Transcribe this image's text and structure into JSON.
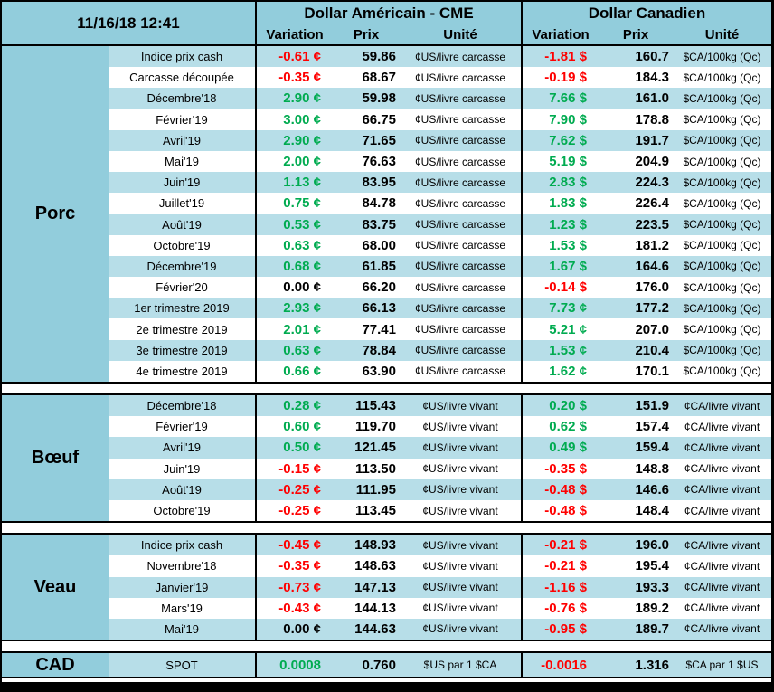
{
  "header": {
    "datetime": "11/16/18 12:41",
    "group_us": "Dollar Américain - CME",
    "group_ca": "Dollar Canadien",
    "col_variation": "Variation",
    "col_prix": "Prix",
    "col_unite": "Unité"
  },
  "colors": {
    "header_teal": "#92CDDC",
    "stripe_blue": "#B7DEE8",
    "negative_red": "#FF0000",
    "positive_green": "#00AB50",
    "border_black": "#000000"
  },
  "sections": [
    {
      "name": "Porc",
      "rows": [
        {
          "label": "Indice prix cash",
          "us_var": "-0.61 ¢",
          "us_price": "59.86",
          "us_unit": "¢US/livre carcasse",
          "ca_var": "-1.81 $",
          "ca_price": "160.7",
          "ca_unit": "$CA/100kg (Qc)"
        },
        {
          "label": "Carcasse découpée",
          "us_var": "-0.35 ¢",
          "us_price": "68.67",
          "us_unit": "¢US/livre carcasse",
          "ca_var": "-0.19 $",
          "ca_price": "184.3",
          "ca_unit": "$CA/100kg (Qc)"
        },
        {
          "label": "Décembre'18",
          "us_var": "2.90 ¢",
          "us_price": "59.98",
          "us_unit": "¢US/livre carcasse",
          "ca_var": "7.66 $",
          "ca_price": "161.0",
          "ca_unit": "$CA/100kg (Qc)"
        },
        {
          "label": "Février'19",
          "us_var": "3.00 ¢",
          "us_price": "66.75",
          "us_unit": "¢US/livre carcasse",
          "ca_var": "7.90 $",
          "ca_price": "178.8",
          "ca_unit": "$CA/100kg (Qc)"
        },
        {
          "label": "Avril'19",
          "us_var": "2.90 ¢",
          "us_price": "71.65",
          "us_unit": "¢US/livre carcasse",
          "ca_var": "7.62 $",
          "ca_price": "191.7",
          "ca_unit": "$CA/100kg (Qc)"
        },
        {
          "label": "Mai'19",
          "us_var": "2.00 ¢",
          "us_price": "76.63",
          "us_unit": "¢US/livre carcasse",
          "ca_var": "5.19 $",
          "ca_price": "204.9",
          "ca_unit": "$CA/100kg (Qc)"
        },
        {
          "label": "Juin'19",
          "us_var": "1.13 ¢",
          "us_price": "83.95",
          "us_unit": "¢US/livre carcasse",
          "ca_var": "2.83 $",
          "ca_price": "224.3",
          "ca_unit": "$CA/100kg (Qc)"
        },
        {
          "label": "Juillet'19",
          "us_var": "0.75 ¢",
          "us_price": "84.78",
          "us_unit": "¢US/livre carcasse",
          "ca_var": "1.83 $",
          "ca_price": "226.4",
          "ca_unit": "$CA/100kg (Qc)"
        },
        {
          "label": "Août'19",
          "us_var": "0.53 ¢",
          "us_price": "83.75",
          "us_unit": "¢US/livre carcasse",
          "ca_var": "1.23 $",
          "ca_price": "223.5",
          "ca_unit": "$CA/100kg (Qc)"
        },
        {
          "label": "Octobre'19",
          "us_var": "0.63 ¢",
          "us_price": "68.00",
          "us_unit": "¢US/livre carcasse",
          "ca_var": "1.53 $",
          "ca_price": "181.2",
          "ca_unit": "$CA/100kg (Qc)"
        },
        {
          "label": "Décembre'19",
          "us_var": "0.68 ¢",
          "us_price": "61.85",
          "us_unit": "¢US/livre carcasse",
          "ca_var": "1.67 $",
          "ca_price": "164.6",
          "ca_unit": "$CA/100kg (Qc)"
        },
        {
          "label": "Février'20",
          "us_var": "0.00 ¢",
          "us_price": "66.20",
          "us_unit": "¢US/livre carcasse",
          "ca_var": "-0.14 $",
          "ca_price": "176.0",
          "ca_unit": "$CA/100kg (Qc)"
        },
        {
          "label": "1er trimestre 2019",
          "us_var": "2.93 ¢",
          "us_price": "66.13",
          "us_unit": "¢US/livre carcasse",
          "ca_var": "7.73 ¢",
          "ca_price": "177.2",
          "ca_unit": "$CA/100kg (Qc)"
        },
        {
          "label": "2e trimestre 2019",
          "us_var": "2.01 ¢",
          "us_price": "77.41",
          "us_unit": "¢US/livre carcasse",
          "ca_var": "5.21 ¢",
          "ca_price": "207.0",
          "ca_unit": "$CA/100kg (Qc)"
        },
        {
          "label": "3e trimestre 2019",
          "us_var": "0.63 ¢",
          "us_price": "78.84",
          "us_unit": "¢US/livre carcasse",
          "ca_var": "1.53 ¢",
          "ca_price": "210.4",
          "ca_unit": "$CA/100kg (Qc)"
        },
        {
          "label": "4e trimestre 2019",
          "us_var": "0.66 ¢",
          "us_price": "63.90",
          "us_unit": "¢US/livre carcasse",
          "ca_var": "1.62 ¢",
          "ca_price": "170.1",
          "ca_unit": "$CA/100kg (Qc)"
        }
      ]
    },
    {
      "name": "Bœuf",
      "rows": [
        {
          "label": "Décembre'18",
          "us_var": "0.28 ¢",
          "us_price": "115.43",
          "us_unit": "¢US/livre vivant",
          "ca_var": "0.20 $",
          "ca_price": "151.9",
          "ca_unit": "¢CA/livre vivant"
        },
        {
          "label": "Février'19",
          "us_var": "0.60 ¢",
          "us_price": "119.70",
          "us_unit": "¢US/livre vivant",
          "ca_var": "0.62 $",
          "ca_price": "157.4",
          "ca_unit": "¢CA/livre vivant"
        },
        {
          "label": "Avril'19",
          "us_var": "0.50 ¢",
          "us_price": "121.45",
          "us_unit": "¢US/livre vivant",
          "ca_var": "0.49 $",
          "ca_price": "159.4",
          "ca_unit": "¢CA/livre vivant"
        },
        {
          "label": "Juin'19",
          "us_var": "-0.15 ¢",
          "us_price": "113.50",
          "us_unit": "¢US/livre vivant",
          "ca_var": "-0.35 $",
          "ca_price": "148.8",
          "ca_unit": "¢CA/livre vivant"
        },
        {
          "label": "Août'19",
          "us_var": "-0.25 ¢",
          "us_price": "111.95",
          "us_unit": "¢US/livre vivant",
          "ca_var": "-0.48 $",
          "ca_price": "146.6",
          "ca_unit": "¢CA/livre vivant"
        },
        {
          "label": "Octobre'19",
          "us_var": "-0.25 ¢",
          "us_price": "113.45",
          "us_unit": "¢US/livre vivant",
          "ca_var": "-0.48 $",
          "ca_price": "148.4",
          "ca_unit": "¢CA/livre vivant"
        }
      ]
    },
    {
      "name": "Veau",
      "rows": [
        {
          "label": "Indice prix cash",
          "us_var": "-0.45 ¢",
          "us_price": "148.93",
          "us_unit": "¢US/livre vivant",
          "ca_var": "-0.21 $",
          "ca_price": "196.0",
          "ca_unit": "¢CA/livre vivant"
        },
        {
          "label": "Novembre'18",
          "us_var": "-0.35 ¢",
          "us_price": "148.63",
          "us_unit": "¢US/livre vivant",
          "ca_var": "-0.21 $",
          "ca_price": "195.4",
          "ca_unit": "¢CA/livre vivant"
        },
        {
          "label": "Janvier'19",
          "us_var": "-0.73 ¢",
          "us_price": "147.13",
          "us_unit": "¢US/livre vivant",
          "ca_var": "-1.16 $",
          "ca_price": "193.3",
          "ca_unit": "¢CA/livre vivant"
        },
        {
          "label": "Mars'19",
          "us_var": "-0.43 ¢",
          "us_price": "144.13",
          "us_unit": "¢US/livre vivant",
          "ca_var": "-0.76 $",
          "ca_price": "189.2",
          "ca_unit": "¢CA/livre vivant"
        },
        {
          "label": "Mai'19",
          "us_var": "0.00 ¢",
          "us_price": "144.63",
          "us_unit": "¢US/livre vivant",
          "ca_var": "-0.95 $",
          "ca_price": "189.7",
          "ca_unit": "¢CA/livre vivant"
        }
      ]
    },
    {
      "name": "CAD",
      "rows": [
        {
          "label": "SPOT",
          "us_var": "0.0008",
          "us_price": "0.760",
          "us_unit": "$US par 1 $CA",
          "ca_var": "-0.0016",
          "ca_price": "1.316",
          "ca_unit": "$CA par 1 $US"
        }
      ]
    }
  ]
}
